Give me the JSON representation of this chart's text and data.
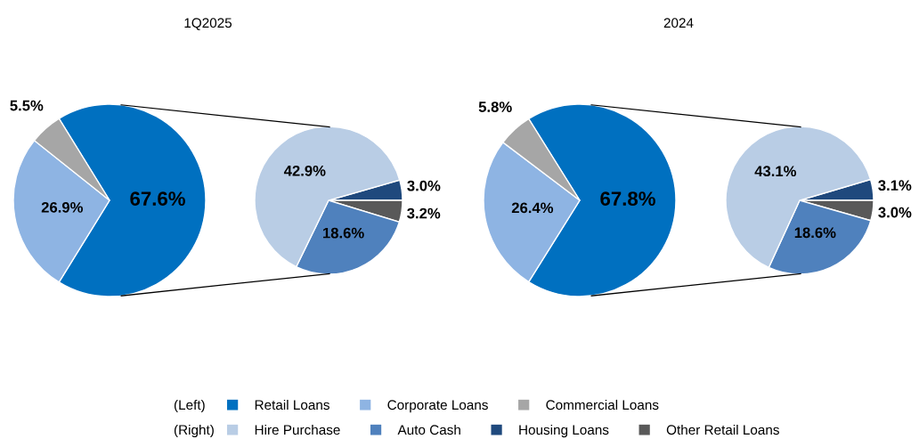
{
  "chart_data": [
    {
      "type": "pie",
      "title": "1Q2025",
      "categories": [
        "Retail Loans",
        "Corporate Loans",
        "Commercial Loans"
      ],
      "values": [
        67.6,
        26.9,
        5.5
      ],
      "colors": [
        "#0070c0",
        "#8eb4e3",
        "#a6a6a6"
      ],
      "value_labels": [
        "67.6%",
        "26.9%",
        "5.5%"
      ],
      "legend": "bottom",
      "legend_title": "(Left)"
    },
    {
      "type": "pie",
      "categories": [
        "Hire Purchase",
        "Auto Cash",
        "Housing Loans",
        "Other Retail Loans"
      ],
      "values": [
        42.9,
        18.6,
        3.0,
        3.2
      ],
      "colors": [
        "#b9cde5",
        "#4f81bd",
        "#1f497d",
        "#595959"
      ],
      "value_labels": [
        "42.9%",
        "18.6%",
        "3.0%",
        "3.2%"
      ],
      "legend": "bottom",
      "legend_title": "(Right)"
    },
    {
      "type": "pie",
      "title": "2024",
      "categories": [
        null,
        null,
        null
      ],
      "values": [
        67.8,
        26.4,
        5.8
      ],
      "colors": [
        "#0070c0",
        "#8eb4e3",
        "#a6a6a6"
      ],
      "value_labels": [
        "67.8%",
        "26.4%",
        "5.8%"
      ]
    },
    {
      "type": "pie",
      "categories": [
        null,
        null,
        null,
        null
      ],
      "values": [
        43.1,
        18.6,
        3.1,
        3.0
      ],
      "colors": [
        "#b9cde5",
        "#4f81bd",
        "#1f497d",
        "#595959"
      ],
      "value_labels": [
        "43.1%",
        "18.6%",
        "3.1%",
        "3.0%"
      ]
    }
  ]
}
